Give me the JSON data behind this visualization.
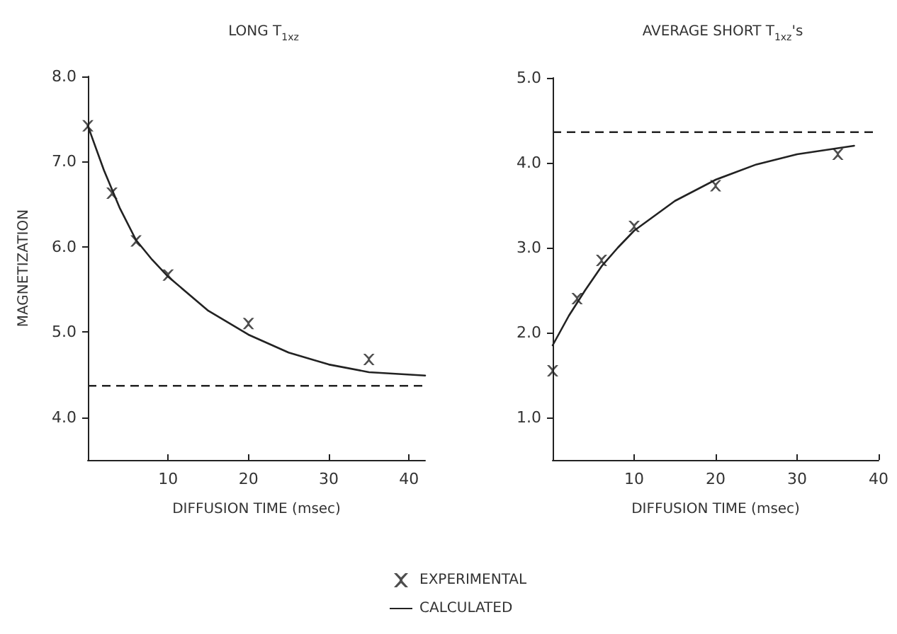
{
  "chart_data": [
    {
      "type": "scatter",
      "title": "LONG T$_{1xz}$",
      "xlabel": "DIFFUSION TIME (msec)",
      "ylabel": "MAGNETIZATION",
      "xlim": [
        0,
        42
      ],
      "ylim": [
        3.5,
        8
      ],
      "xticks": [
        10,
        20,
        30,
        40
      ],
      "yticks": [
        {
          "value": 4,
          "label": "4.0"
        },
        {
          "value": 5,
          "label": "5.0"
        },
        {
          "value": 6,
          "label": "6.0"
        },
        {
          "value": 7,
          "label": "7.0"
        },
        {
          "value": 8,
          "label": "8.0"
        }
      ],
      "grid": false,
      "legend": "bottom",
      "series": [
        {
          "name": "EXPERIMENTAL",
          "marker": "cross",
          "color": "#222222",
          "x": [
            0,
            3,
            6,
            10,
            20,
            35
          ],
          "values": [
            7.42,
            6.63,
            6.07,
            5.67,
            5.1,
            4.68
          ]
        },
        {
          "name": "CALCULATED",
          "type": "line",
          "marker": "none",
          "color": "#222222",
          "line_style": "solid",
          "x": [
            0,
            2,
            4,
            6,
            8,
            10,
            15,
            20,
            25,
            30,
            35,
            42
          ],
          "values": [
            7.42,
            6.9,
            6.45,
            6.08,
            5.85,
            5.65,
            5.25,
            4.97,
            4.76,
            4.62,
            4.53,
            4.49
          ]
        }
      ],
      "ref_lines": [
        {
          "axis": "y",
          "value": 4.37,
          "color": "#222222",
          "line_style": "dashed"
        }
      ]
    },
    {
      "type": "scatter",
      "title": "AVERAGE SHORT T$_{1xz}$'s",
      "xlabel": "DIFFUSION TIME (msec)",
      "xlim": [
        0,
        40
      ],
      "ylim": [
        0.5,
        5
      ],
      "xticks": [
        10,
        20,
        30,
        40
      ],
      "yticks": [
        {
          "value": 1,
          "label": "1.0"
        },
        {
          "value": 2,
          "label": "2.0"
        },
        {
          "value": 3,
          "label": "3.0"
        },
        {
          "value": 4,
          "label": "4.0"
        },
        {
          "value": 5,
          "label": "5.0"
        }
      ],
      "grid": false,
      "series": [
        {
          "marker": "cross",
          "color": "#222222",
          "x": [
            0,
            3,
            6,
            10,
            20,
            35
          ],
          "values": [
            1.55,
            2.4,
            2.85,
            3.25,
            3.73,
            4.1
          ]
        },
        {
          "type": "line",
          "marker": "none",
          "color": "#222222",
          "line_style": "solid",
          "x": [
            0,
            2,
            4,
            6,
            8,
            10,
            15,
            20,
            25,
            30,
            37
          ],
          "values": [
            1.85,
            2.2,
            2.5,
            2.78,
            3.0,
            3.2,
            3.55,
            3.8,
            3.98,
            4.1,
            4.2
          ]
        }
      ],
      "ref_lines": [
        {
          "axis": "y",
          "value": 4.36,
          "color": "#222222",
          "line_style": "dashed"
        }
      ]
    }
  ]
}
